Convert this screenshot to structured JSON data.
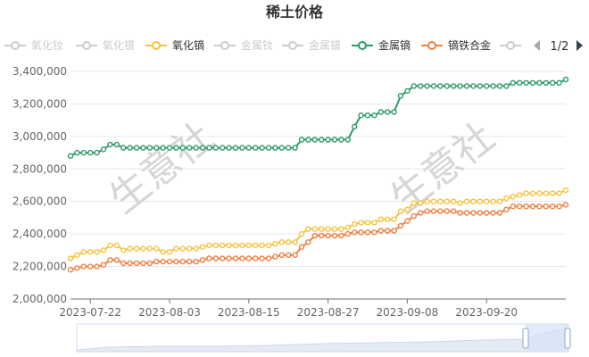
{
  "chart_data": {
    "type": "line",
    "title": "稀土价格",
    "xlabel": "",
    "ylabel": "",
    "ylim": [
      2000000,
      3400000
    ],
    "yticks": [
      "2,000,000",
      "2,200,000",
      "2,400,000",
      "2,600,000",
      "2,800,000",
      "3,000,000",
      "3,200,000",
      "3,400,000"
    ],
    "xticks": [
      "2023-07-22",
      "2023-08-03",
      "2023-08-15",
      "2023-08-27",
      "2023-09-08",
      "2023-09-20"
    ],
    "grid": true,
    "legend_position": "top",
    "legend": [
      {
        "name": "氧化钕",
        "color": "#cccccc",
        "active": false
      },
      {
        "name": "氧化镨",
        "color": "#cccccc",
        "active": false
      },
      {
        "name": "氧化镝",
        "color": "#f5c342",
        "active": true
      },
      {
        "name": "金属钕",
        "color": "#cccccc",
        "active": false
      },
      {
        "name": "金属镨",
        "color": "#cccccc",
        "active": false
      },
      {
        "name": "金属镝",
        "color": "#2e9a68",
        "active": true
      },
      {
        "name": "镝铁合金",
        "color": "#f07f42",
        "active": true
      },
      {
        "name": "",
        "color": "#cccccc",
        "active": false
      }
    ],
    "legend_page": "1/2",
    "series": [
      {
        "name": "金属镝",
        "color": "#2e9a68",
        "values": [
          2880000,
          2900000,
          2900000,
          2900000,
          2900000,
          2920000,
          2950000,
          2950000,
          2930000,
          2930000,
          2930000,
          2930000,
          2930000,
          2930000,
          2930000,
          2930000,
          2930000,
          2930000,
          2930000,
          2930000,
          2930000,
          2930000,
          2930000,
          2930000,
          2930000,
          2930000,
          2930000,
          2930000,
          2930000,
          2930000,
          2930000,
          2930000,
          2930000,
          2930000,
          2930000,
          2980000,
          2980000,
          2980000,
          2980000,
          2980000,
          2980000,
          2980000,
          2980000,
          3060000,
          3130000,
          3130000,
          3130000,
          3150000,
          3150000,
          3150000,
          3250000,
          3280000,
          3310000,
          3310000,
          3310000,
          3310000,
          3310000,
          3310000,
          3310000,
          3310000,
          3310000,
          3310000,
          3310000,
          3310000,
          3310000,
          3310000,
          3310000,
          3330000,
          3330000,
          3330000,
          3330000,
          3330000,
          3330000,
          3330000,
          3330000,
          3350000
        ]
      },
      {
        "name": "氧化镝",
        "color": "#f5c342",
        "values": [
          2250000,
          2270000,
          2290000,
          2290000,
          2290000,
          2300000,
          2330000,
          2330000,
          2300000,
          2310000,
          2310000,
          2310000,
          2310000,
          2310000,
          2290000,
          2290000,
          2310000,
          2310000,
          2310000,
          2310000,
          2320000,
          2330000,
          2330000,
          2330000,
          2330000,
          2330000,
          2330000,
          2330000,
          2330000,
          2330000,
          2330000,
          2340000,
          2350000,
          2350000,
          2350000,
          2400000,
          2430000,
          2430000,
          2430000,
          2430000,
          2430000,
          2430000,
          2440000,
          2460000,
          2470000,
          2470000,
          2470000,
          2490000,
          2490000,
          2490000,
          2540000,
          2550000,
          2590000,
          2590000,
          2600000,
          2600000,
          2600000,
          2600000,
          2600000,
          2590000,
          2600000,
          2600000,
          2600000,
          2600000,
          2600000,
          2600000,
          2620000,
          2630000,
          2640000,
          2650000,
          2650000,
          2650000,
          2650000,
          2650000,
          2650000,
          2670000
        ]
      },
      {
        "name": "镝铁合金",
        "color": "#f07f42",
        "values": [
          2180000,
          2190000,
          2200000,
          2200000,
          2200000,
          2210000,
          2240000,
          2240000,
          2220000,
          2220000,
          2220000,
          2220000,
          2220000,
          2230000,
          2230000,
          2230000,
          2230000,
          2230000,
          2230000,
          2230000,
          2240000,
          2250000,
          2250000,
          2250000,
          2250000,
          2250000,
          2250000,
          2250000,
          2250000,
          2250000,
          2250000,
          2260000,
          2270000,
          2270000,
          2270000,
          2320000,
          2350000,
          2390000,
          2390000,
          2390000,
          2390000,
          2390000,
          2400000,
          2410000,
          2410000,
          2410000,
          2410000,
          2420000,
          2420000,
          2420000,
          2450000,
          2480000,
          2510000,
          2530000,
          2540000,
          2540000,
          2540000,
          2540000,
          2540000,
          2530000,
          2530000,
          2530000,
          2530000,
          2530000,
          2530000,
          2530000,
          2550000,
          2570000,
          2570000,
          2570000,
          2570000,
          2570000,
          2570000,
          2570000,
          2570000,
          2580000
        ]
      }
    ]
  }
}
